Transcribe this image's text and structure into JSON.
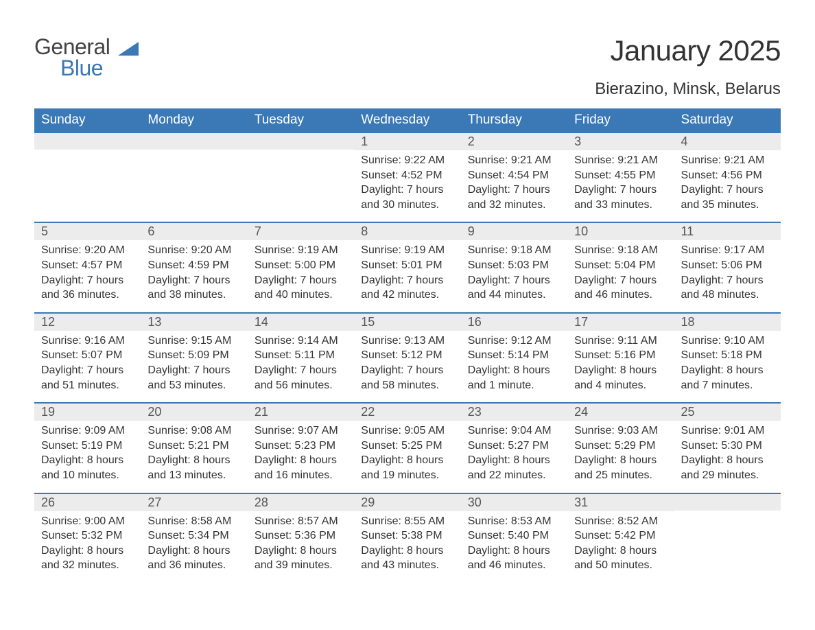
{
  "brand": {
    "part1": "General",
    "part2": "Blue",
    "accent_color": "#3a78b6"
  },
  "title": "January 2025",
  "location": "Bierazino, Minsk, Belarus",
  "colors": {
    "header_bg": "#3a78b6",
    "header_text": "#ffffff",
    "daybar_bg": "#ececec",
    "row_border": "#3a78b6",
    "body_text": "#333333",
    "background": "#ffffff"
  },
  "typography": {
    "title_fontsize": 42,
    "location_fontsize": 24,
    "header_fontsize": 19,
    "daynum_fontsize": 18,
    "body_fontsize": 16
  },
  "weekdays": [
    "Sunday",
    "Monday",
    "Tuesday",
    "Wednesday",
    "Thursday",
    "Friday",
    "Saturday"
  ],
  "weeks": [
    [
      {
        "n": "",
        "sunrise": "",
        "sunset": "",
        "daylight": ""
      },
      {
        "n": "",
        "sunrise": "",
        "sunset": "",
        "daylight": ""
      },
      {
        "n": "",
        "sunrise": "",
        "sunset": "",
        "daylight": ""
      },
      {
        "n": "1",
        "sunrise": "Sunrise: 9:22 AM",
        "sunset": "Sunset: 4:52 PM",
        "daylight": "Daylight: 7 hours and 30 minutes."
      },
      {
        "n": "2",
        "sunrise": "Sunrise: 9:21 AM",
        "sunset": "Sunset: 4:54 PM",
        "daylight": "Daylight: 7 hours and 32 minutes."
      },
      {
        "n": "3",
        "sunrise": "Sunrise: 9:21 AM",
        "sunset": "Sunset: 4:55 PM",
        "daylight": "Daylight: 7 hours and 33 minutes."
      },
      {
        "n": "4",
        "sunrise": "Sunrise: 9:21 AM",
        "sunset": "Sunset: 4:56 PM",
        "daylight": "Daylight: 7 hours and 35 minutes."
      }
    ],
    [
      {
        "n": "5",
        "sunrise": "Sunrise: 9:20 AM",
        "sunset": "Sunset: 4:57 PM",
        "daylight": "Daylight: 7 hours and 36 minutes."
      },
      {
        "n": "6",
        "sunrise": "Sunrise: 9:20 AM",
        "sunset": "Sunset: 4:59 PM",
        "daylight": "Daylight: 7 hours and 38 minutes."
      },
      {
        "n": "7",
        "sunrise": "Sunrise: 9:19 AM",
        "sunset": "Sunset: 5:00 PM",
        "daylight": "Daylight: 7 hours and 40 minutes."
      },
      {
        "n": "8",
        "sunrise": "Sunrise: 9:19 AM",
        "sunset": "Sunset: 5:01 PM",
        "daylight": "Daylight: 7 hours and 42 minutes."
      },
      {
        "n": "9",
        "sunrise": "Sunrise: 9:18 AM",
        "sunset": "Sunset: 5:03 PM",
        "daylight": "Daylight: 7 hours and 44 minutes."
      },
      {
        "n": "10",
        "sunrise": "Sunrise: 9:18 AM",
        "sunset": "Sunset: 5:04 PM",
        "daylight": "Daylight: 7 hours and 46 minutes."
      },
      {
        "n": "11",
        "sunrise": "Sunrise: 9:17 AM",
        "sunset": "Sunset: 5:06 PM",
        "daylight": "Daylight: 7 hours and 48 minutes."
      }
    ],
    [
      {
        "n": "12",
        "sunrise": "Sunrise: 9:16 AM",
        "sunset": "Sunset: 5:07 PM",
        "daylight": "Daylight: 7 hours and 51 minutes."
      },
      {
        "n": "13",
        "sunrise": "Sunrise: 9:15 AM",
        "sunset": "Sunset: 5:09 PM",
        "daylight": "Daylight: 7 hours and 53 minutes."
      },
      {
        "n": "14",
        "sunrise": "Sunrise: 9:14 AM",
        "sunset": "Sunset: 5:11 PM",
        "daylight": "Daylight: 7 hours and 56 minutes."
      },
      {
        "n": "15",
        "sunrise": "Sunrise: 9:13 AM",
        "sunset": "Sunset: 5:12 PM",
        "daylight": "Daylight: 7 hours and 58 minutes."
      },
      {
        "n": "16",
        "sunrise": "Sunrise: 9:12 AM",
        "sunset": "Sunset: 5:14 PM",
        "daylight": "Daylight: 8 hours and 1 minute."
      },
      {
        "n": "17",
        "sunrise": "Sunrise: 9:11 AM",
        "sunset": "Sunset: 5:16 PM",
        "daylight": "Daylight: 8 hours and 4 minutes."
      },
      {
        "n": "18",
        "sunrise": "Sunrise: 9:10 AM",
        "sunset": "Sunset: 5:18 PM",
        "daylight": "Daylight: 8 hours and 7 minutes."
      }
    ],
    [
      {
        "n": "19",
        "sunrise": "Sunrise: 9:09 AM",
        "sunset": "Sunset: 5:19 PM",
        "daylight": "Daylight: 8 hours and 10 minutes."
      },
      {
        "n": "20",
        "sunrise": "Sunrise: 9:08 AM",
        "sunset": "Sunset: 5:21 PM",
        "daylight": "Daylight: 8 hours and 13 minutes."
      },
      {
        "n": "21",
        "sunrise": "Sunrise: 9:07 AM",
        "sunset": "Sunset: 5:23 PM",
        "daylight": "Daylight: 8 hours and 16 minutes."
      },
      {
        "n": "22",
        "sunrise": "Sunrise: 9:05 AM",
        "sunset": "Sunset: 5:25 PM",
        "daylight": "Daylight: 8 hours and 19 minutes."
      },
      {
        "n": "23",
        "sunrise": "Sunrise: 9:04 AM",
        "sunset": "Sunset: 5:27 PM",
        "daylight": "Daylight: 8 hours and 22 minutes."
      },
      {
        "n": "24",
        "sunrise": "Sunrise: 9:03 AM",
        "sunset": "Sunset: 5:29 PM",
        "daylight": "Daylight: 8 hours and 25 minutes."
      },
      {
        "n": "25",
        "sunrise": "Sunrise: 9:01 AM",
        "sunset": "Sunset: 5:30 PM",
        "daylight": "Daylight: 8 hours and 29 minutes."
      }
    ],
    [
      {
        "n": "26",
        "sunrise": "Sunrise: 9:00 AM",
        "sunset": "Sunset: 5:32 PM",
        "daylight": "Daylight: 8 hours and 32 minutes."
      },
      {
        "n": "27",
        "sunrise": "Sunrise: 8:58 AM",
        "sunset": "Sunset: 5:34 PM",
        "daylight": "Daylight: 8 hours and 36 minutes."
      },
      {
        "n": "28",
        "sunrise": "Sunrise: 8:57 AM",
        "sunset": "Sunset: 5:36 PM",
        "daylight": "Daylight: 8 hours and 39 minutes."
      },
      {
        "n": "29",
        "sunrise": "Sunrise: 8:55 AM",
        "sunset": "Sunset: 5:38 PM",
        "daylight": "Daylight: 8 hours and 43 minutes."
      },
      {
        "n": "30",
        "sunrise": "Sunrise: 8:53 AM",
        "sunset": "Sunset: 5:40 PM",
        "daylight": "Daylight: 8 hours and 46 minutes."
      },
      {
        "n": "31",
        "sunrise": "Sunrise: 8:52 AM",
        "sunset": "Sunset: 5:42 PM",
        "daylight": "Daylight: 8 hours and 50 minutes."
      },
      {
        "n": "",
        "sunrise": "",
        "sunset": "",
        "daylight": ""
      }
    ]
  ]
}
